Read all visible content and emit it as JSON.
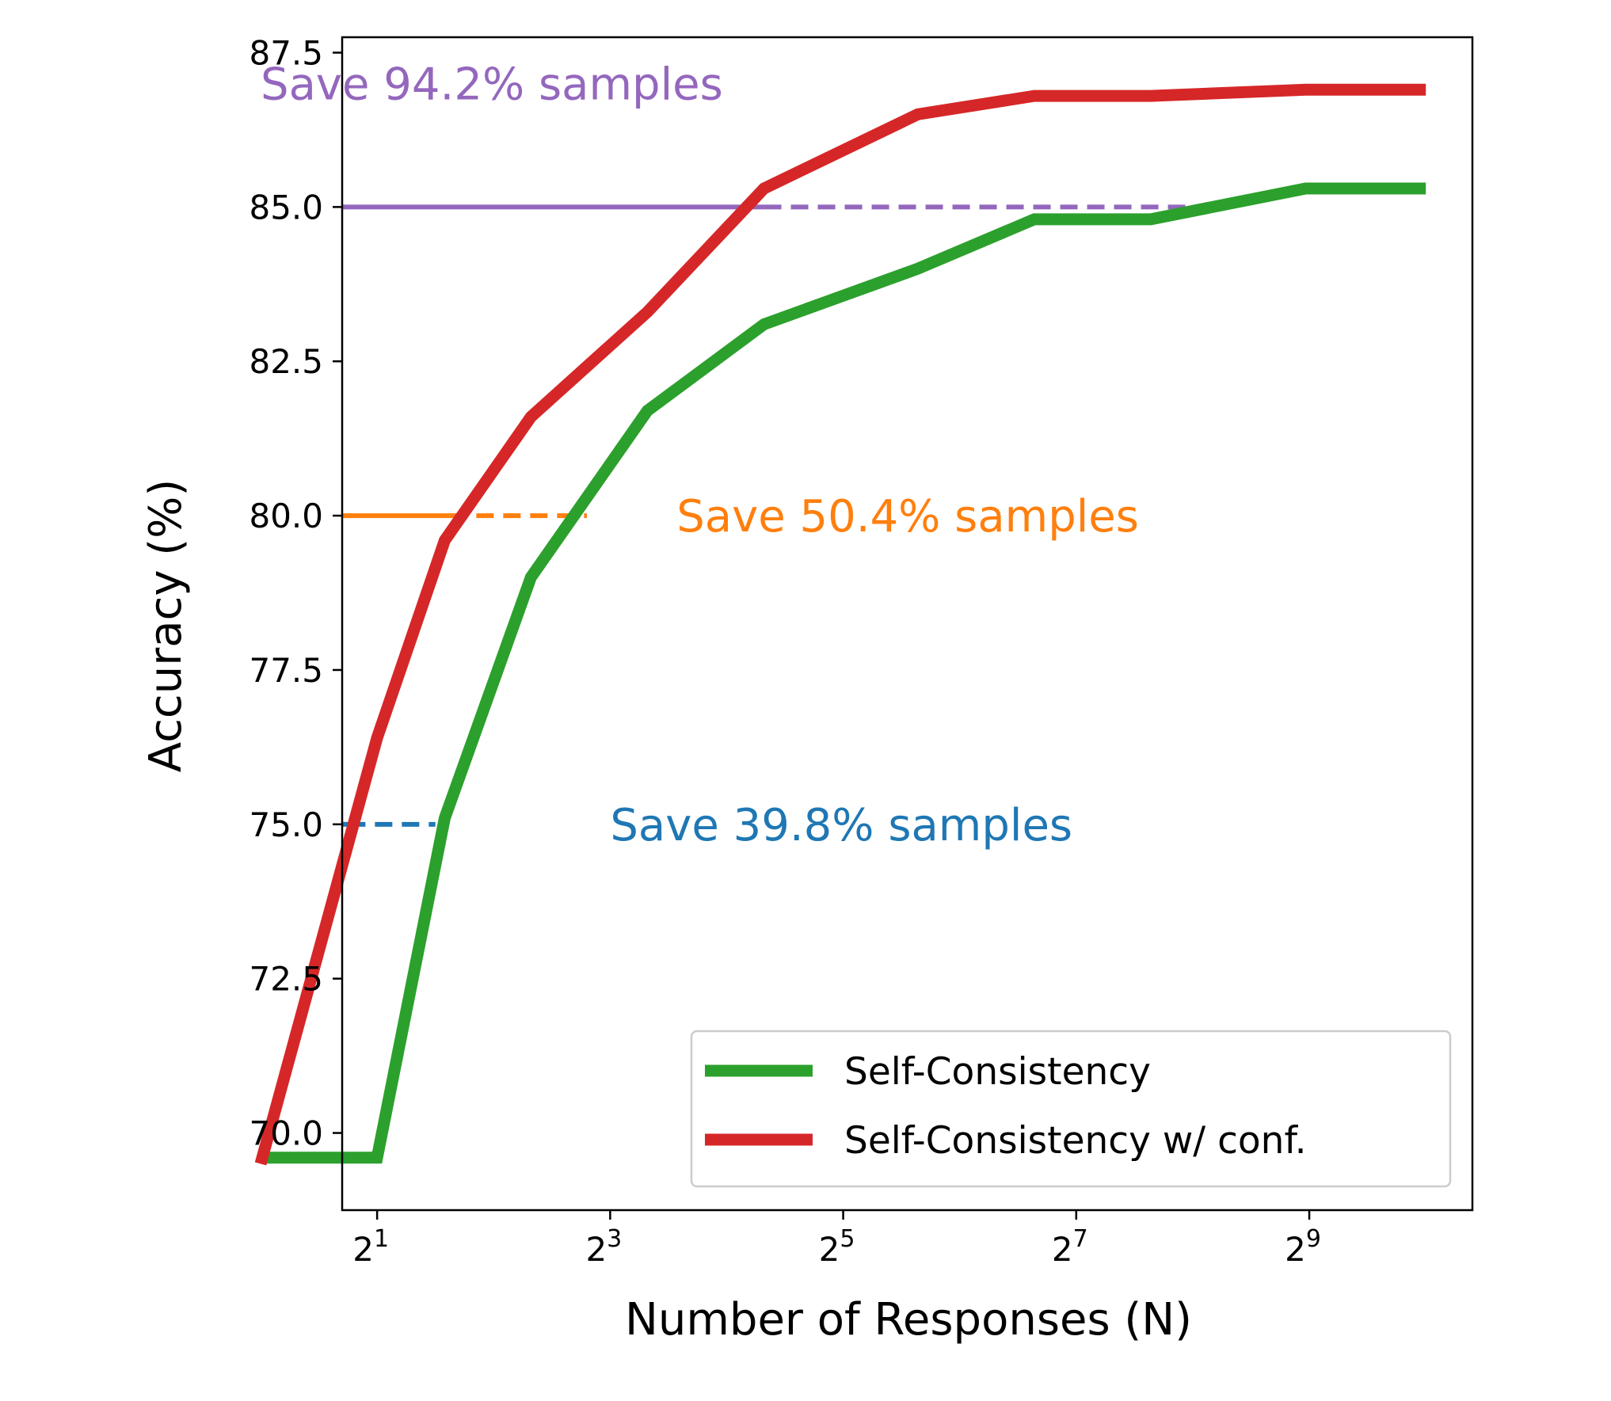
{
  "chart_data": {
    "type": "line",
    "xlabel": "Number of Responses (N)",
    "ylabel": "Accuracy (%)",
    "x_scale": "log2",
    "xlim": [
      0.7,
      10.4
    ],
    "ylim": [
      68.75,
      87.75
    ],
    "x_ticks": [
      {
        "exp": 1,
        "base": "2",
        "sup": "1"
      },
      {
        "exp": 3,
        "base": "2",
        "sup": "3"
      },
      {
        "exp": 5,
        "base": "2",
        "sup": "5"
      },
      {
        "exp": 7,
        "base": "2",
        "sup": "7"
      },
      {
        "exp": 9,
        "base": "2",
        "sup": "9"
      }
    ],
    "y_ticks": [
      {
        "value": 70.0,
        "label": "70.0"
      },
      {
        "value": 72.5,
        "label": "72.5"
      },
      {
        "value": 75.0,
        "label": "75.0"
      },
      {
        "value": 77.5,
        "label": "77.5"
      },
      {
        "value": 80.0,
        "label": "80.0"
      },
      {
        "value": 82.5,
        "label": "82.5"
      },
      {
        "value": 85.0,
        "label": "85.0"
      },
      {
        "value": 87.5,
        "label": "87.5"
      }
    ],
    "series": [
      {
        "name": "Self-Consistency",
        "color": "#2ca02c",
        "x_log2": [
          0,
          1,
          1.58,
          2.32,
          3.32,
          4.32,
          5.64,
          6.64,
          7.64,
          8.97,
          10
        ],
        "values": [
          69.6,
          69.6,
          75.1,
          79.0,
          81.7,
          83.1,
          84.0,
          84.8,
          84.8,
          85.3,
          85.3
        ]
      },
      {
        "name": "Self-Consistency w/ conf.",
        "color": "#d62728",
        "x_log2": [
          0,
          1,
          1.58,
          2.32,
          3.32,
          4.32,
          5.64,
          6.64,
          7.64,
          8.97,
          10
        ],
        "values": [
          69.5,
          76.4,
          79.6,
          81.6,
          83.3,
          85.3,
          86.5,
          86.8,
          86.8,
          86.9,
          86.9
        ]
      }
    ],
    "thresholds": [
      {
        "y": 75.0,
        "color": "#1f77b4",
        "solid_to_log2": 0.75,
        "dashed_to_log2": 1.5,
        "label": "Save 39.8% samples",
        "label_x_log2": 3.0,
        "label_y": 75.0
      },
      {
        "y": 80.0,
        "color": "#ff7f0e",
        "solid_to_log2": 1.62,
        "dashed_to_log2": 2.8,
        "label": "Save 50.4% samples",
        "label_x_log2": 3.57,
        "label_y": 80.0
      },
      {
        "y": 85.0,
        "color": "#9467bd",
        "solid_to_log2": 4.32,
        "dashed_to_log2": 8.3,
        "label": "Save 94.2% samples",
        "label_x_log2": 0.0,
        "label_y": 87.0
      }
    ],
    "legend": {
      "position": "bottom-right"
    }
  }
}
